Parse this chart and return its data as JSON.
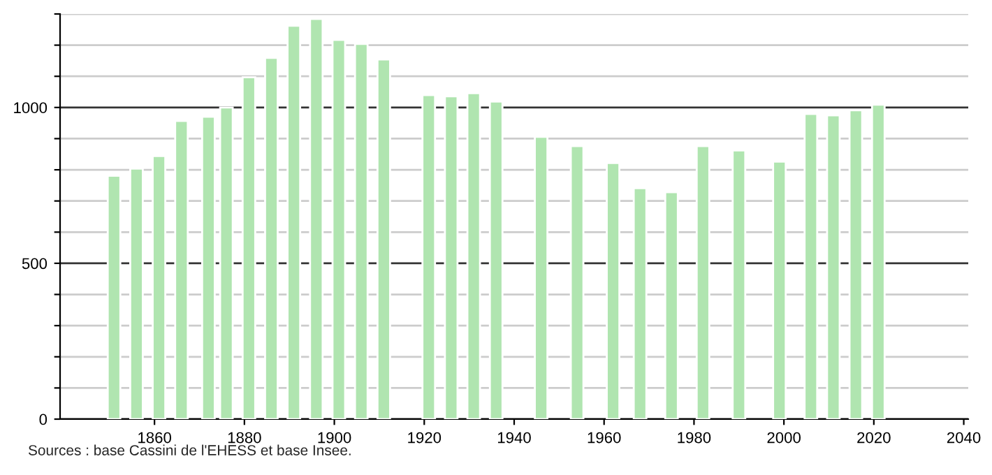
{
  "chart_data": {
    "type": "bar",
    "x": [
      1851,
      1856,
      1861,
      1866,
      1872,
      1876,
      1881,
      1886,
      1891,
      1896,
      1901,
      1906,
      1911,
      1921,
      1926,
      1931,
      1936,
      1946,
      1954,
      1962,
      1968,
      1975,
      1982,
      1990,
      1999,
      2006,
      2011,
      2016,
      2021
    ],
    "values": [
      781,
      804,
      844,
      957,
      970,
      1000,
      1097,
      1159,
      1262,
      1284,
      1217,
      1204,
      1154,
      1040,
      1036,
      1046,
      1019,
      906,
      876,
      822,
      741,
      728,
      876,
      862,
      826,
      979,
      975,
      991,
      1009
    ],
    "color": "#b0e5b0",
    "xlim": [
      1839,
      2041
    ],
    "xticks": [
      1860,
      1880,
      1900,
      1920,
      1940,
      1960,
      1980,
      2000,
      2020,
      2040
    ],
    "ylim": [
      0,
      1300
    ],
    "yticks": [
      0,
      {
        "value": 100,
        "label": null
      },
      {
        "value": 200,
        "label": null
      },
      {
        "value": 300,
        "label": null
      },
      {
        "value": 400,
        "label": null
      },
      500,
      {
        "value": 600,
        "label": null
      },
      {
        "value": 700,
        "label": null
      },
      {
        "value": 800,
        "label": null
      },
      {
        "value": 900,
        "label": null
      },
      1000,
      {
        "value": 1100,
        "label": null
      },
      {
        "value": 1200,
        "label": null
      },
      {
        "value": 1300,
        "label": null
      }
    ],
    "grid": "y",
    "annotations": [
      "Sources : base Cassini de l'EHESS et base Insee."
    ]
  }
}
